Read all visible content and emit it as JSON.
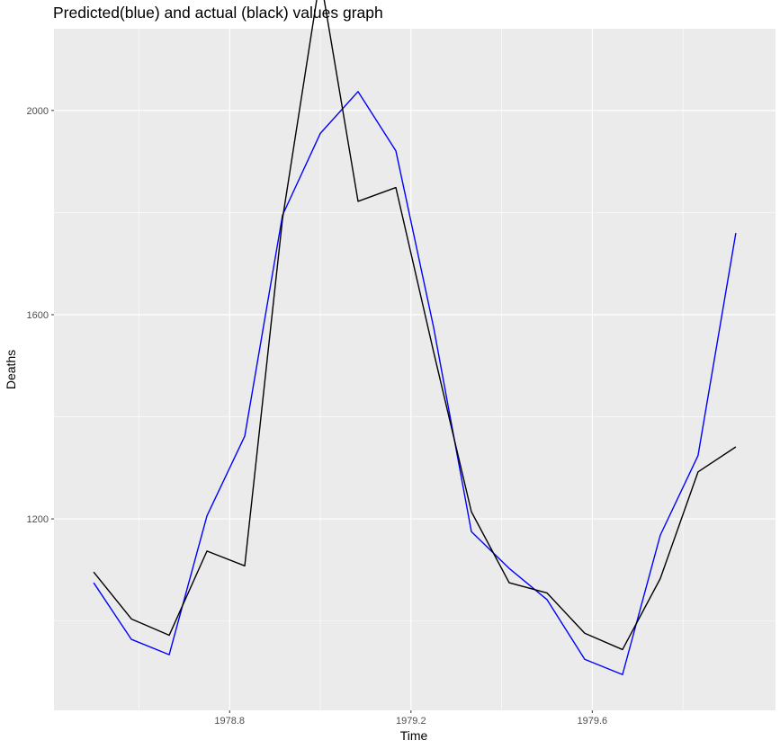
{
  "chart_data": {
    "type": "line",
    "title": "Predicted(blue) and actual (black) values graph",
    "xlabel": "Time",
    "ylabel": "Deaths",
    "x": [
      1978.5,
      1978.5833,
      1978.6667,
      1978.75,
      1978.8333,
      1978.9167,
      1979.0,
      1979.0833,
      1979.1667,
      1979.25,
      1979.3333,
      1979.4167,
      1979.5,
      1979.5833,
      1979.6667,
      1979.75,
      1979.8333,
      1979.9167
    ],
    "xlim": [
      1978.4125,
      1980.0042
    ],
    "ylim": [
      825,
      2160
    ],
    "xticks": [
      1978.8,
      1979.2,
      1979.6
    ],
    "xtick_labels": [
      "1978.8",
      "1979.2",
      "1979.6"
    ],
    "yticks": [
      1200,
      1600,
      2000
    ],
    "ytick_labels": [
      "1200",
      "1600",
      "2000"
    ],
    "grid": true,
    "legend": "none",
    "series": [
      {
        "color": "#0000ff",
        "values": [
          1075,
          964,
          934,
          1206,
          1362,
          1795,
          1955,
          2037,
          1921,
          1575,
          1175,
          1103,
          1042,
          925,
          895,
          1168,
          1324,
          1760
        ]
      },
      {
        "color": "#000000",
        "values": [
          1096,
          1004,
          972,
          1137,
          1108,
          1788,
          2262,
          1822,
          1849,
          1527,
          1214,
          1075,
          1055,
          976,
          944,
          1083,
          1292,
          1341
        ]
      }
    ],
    "colors": {
      "panel": "#ebebeb",
      "grid_major": "#ffffff",
      "tick_label": "#4d4d4d",
      "tick_mark": "#333333"
    }
  }
}
